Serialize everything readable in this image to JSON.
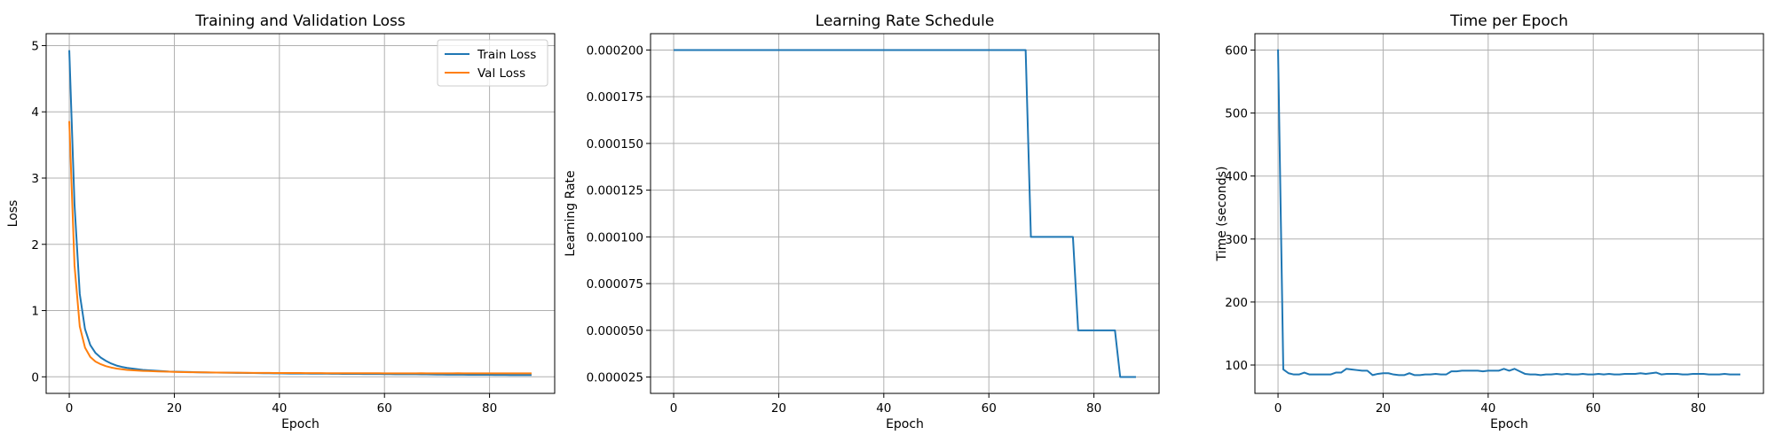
{
  "chart_data": [
    {
      "type": "line",
      "title": "Training and Validation Loss",
      "xlabel": "Epoch",
      "ylabel": "Loss",
      "xlim": [
        -4.4,
        92.4
      ],
      "ylim": [
        -0.25,
        5.18
      ],
      "xticks": [
        0,
        20,
        40,
        60,
        80
      ],
      "yticks": [
        0,
        1,
        2,
        3,
        4,
        5
      ],
      "tick_format": "int",
      "grid": true,
      "legend": "top-right",
      "series": [
        {
          "name": "Train Loss",
          "color": "#1f77b4",
          "x": [
            0,
            1,
            2,
            3,
            4,
            5,
            6,
            7,
            8,
            9,
            10,
            11,
            12,
            13,
            14,
            15,
            16,
            17,
            18,
            19,
            20,
            21,
            22,
            23,
            24,
            25,
            26,
            27,
            28,
            29,
            30,
            31,
            32,
            33,
            34,
            35,
            36,
            37,
            38,
            39,
            40,
            41,
            42,
            43,
            44,
            45,
            46,
            47,
            48,
            49,
            50,
            51,
            52,
            53,
            54,
            55,
            56,
            57,
            58,
            59,
            60,
            61,
            62,
            63,
            64,
            65,
            66,
            67,
            68,
            69,
            70,
            71,
            72,
            73,
            74,
            75,
            76,
            77,
            78,
            79,
            80,
            81,
            82,
            83,
            84,
            85,
            86,
            87,
            88
          ],
          "y": [
            4.93,
            2.6,
            1.25,
            0.72,
            0.48,
            0.36,
            0.29,
            0.24,
            0.2,
            0.17,
            0.15,
            0.135,
            0.125,
            0.115,
            0.105,
            0.1,
            0.095,
            0.09,
            0.085,
            0.08,
            0.078,
            0.076,
            0.074,
            0.072,
            0.07,
            0.068,
            0.066,
            0.065,
            0.064,
            0.063,
            0.062,
            0.061,
            0.06,
            0.059,
            0.058,
            0.057,
            0.056,
            0.055,
            0.054,
            0.053,
            0.052,
            0.051,
            0.05,
            0.05,
            0.049,
            0.049,
            0.048,
            0.048,
            0.047,
            0.047,
            0.046,
            0.046,
            0.045,
            0.045,
            0.044,
            0.044,
            0.043,
            0.043,
            0.042,
            0.042,
            0.041,
            0.041,
            0.04,
            0.04,
            0.04,
            0.039,
            0.039,
            0.038,
            0.037,
            0.036,
            0.035,
            0.034,
            0.033,
            0.033,
            0.032,
            0.032,
            0.031,
            0.031,
            0.03,
            0.03,
            0.03,
            0.029,
            0.029,
            0.029,
            0.028,
            0.028,
            0.028,
            0.027,
            0.027
          ]
        },
        {
          "name": "Val Loss",
          "color": "#ff7f0e",
          "x": [
            0,
            1,
            2,
            3,
            4,
            5,
            6,
            7,
            8,
            9,
            10,
            11,
            12,
            13,
            14,
            15,
            16,
            17,
            18,
            19,
            20,
            21,
            22,
            23,
            24,
            25,
            26,
            27,
            28,
            29,
            30,
            31,
            32,
            33,
            34,
            35,
            36,
            37,
            38,
            39,
            40,
            41,
            42,
            43,
            44,
            45,
            46,
            47,
            48,
            49,
            50,
            51,
            52,
            53,
            54,
            55,
            56,
            57,
            58,
            59,
            60,
            61,
            62,
            63,
            64,
            65,
            66,
            67,
            68,
            69,
            70,
            71,
            72,
            73,
            74,
            75,
            76,
            77,
            78,
            79,
            80,
            81,
            82,
            83,
            84,
            85,
            86,
            87,
            88
          ],
          "y": [
            3.86,
            1.68,
            0.76,
            0.44,
            0.3,
            0.23,
            0.19,
            0.16,
            0.14,
            0.125,
            0.115,
            0.105,
            0.1,
            0.095,
            0.09,
            0.087,
            0.084,
            0.081,
            0.079,
            0.077,
            0.075,
            0.073,
            0.071,
            0.07,
            0.069,
            0.068,
            0.067,
            0.066,
            0.065,
            0.064,
            0.063,
            0.062,
            0.062,
            0.061,
            0.061,
            0.06,
            0.06,
            0.059,
            0.059,
            0.058,
            0.058,
            0.058,
            0.057,
            0.057,
            0.057,
            0.056,
            0.056,
            0.056,
            0.056,
            0.055,
            0.055,
            0.055,
            0.055,
            0.055,
            0.054,
            0.054,
            0.054,
            0.054,
            0.054,
            0.054,
            0.053,
            0.053,
            0.053,
            0.053,
            0.053,
            0.053,
            0.053,
            0.055,
            0.052,
            0.052,
            0.052,
            0.052,
            0.053,
            0.052,
            0.054,
            0.053,
            0.052,
            0.052,
            0.052,
            0.052,
            0.053,
            0.052,
            0.052,
            0.052,
            0.052,
            0.053,
            0.052,
            0.052,
            0.052
          ]
        }
      ]
    },
    {
      "type": "line",
      "title": "Learning Rate Schedule",
      "xlabel": "Epoch",
      "ylabel": "Learning Rate",
      "xlim": [
        -4.4,
        92.4
      ],
      "ylim": [
        1.625e-05,
        0.00020875
      ],
      "xticks": [
        0,
        20,
        40,
        60,
        80
      ],
      "yticks": [
        2.5e-05,
        5e-05,
        7.5e-05,
        0.0001,
        0.000125,
        0.00015,
        0.000175,
        0.0002
      ],
      "tick_format": "fixed6",
      "grid": true,
      "series": [
        {
          "color": "#1f77b4",
          "x": [
            0,
            67,
            68,
            76,
            77,
            84,
            85,
            88
          ],
          "y": [
            0.0002,
            0.0002,
            0.0001,
            0.0001,
            5e-05,
            5e-05,
            2.5e-05,
            2.5e-05
          ]
        }
      ]
    },
    {
      "type": "line",
      "title": "Time per Epoch",
      "xlabel": "Epoch",
      "ylabel": "Time (seconds)",
      "xlim": [
        -4.4,
        92.4
      ],
      "ylim": [
        55,
        626
      ],
      "xticks": [
        0,
        20,
        40,
        60,
        80
      ],
      "yticks": [
        100,
        200,
        300,
        400,
        500,
        600
      ],
      "tick_format": "int",
      "grid": true,
      "series": [
        {
          "color": "#1f77b4",
          "x": [
            0,
            1,
            2,
            3,
            4,
            5,
            6,
            7,
            8,
            9,
            10,
            11,
            12,
            13,
            14,
            15,
            16,
            17,
            18,
            19,
            20,
            21,
            22,
            23,
            24,
            25,
            26,
            27,
            28,
            29,
            30,
            31,
            32,
            33,
            34,
            35,
            36,
            37,
            38,
            39,
            40,
            41,
            42,
            43,
            44,
            45,
            46,
            47,
            48,
            49,
            50,
            51,
            52,
            53,
            54,
            55,
            56,
            57,
            58,
            59,
            60,
            61,
            62,
            63,
            64,
            65,
            66,
            67,
            68,
            69,
            70,
            71,
            72,
            73,
            74,
            75,
            76,
            77,
            78,
            79,
            80,
            81,
            82,
            83,
            84,
            85,
            86,
            87,
            88
          ],
          "y": [
            601,
            93,
            87,
            85,
            85,
            88,
            85,
            85,
            85,
            85,
            85,
            88,
            88,
            94,
            93,
            92,
            91,
            91,
            84,
            86,
            87,
            87,
            85,
            84,
            84,
            87,
            84,
            84,
            85,
            85,
            86,
            85,
            85,
            90,
            90,
            91,
            91,
            91,
            91,
            90,
            91,
            91,
            91,
            94,
            91,
            94,
            90,
            86,
            85,
            85,
            84,
            85,
            85,
            86,
            85,
            86,
            85,
            85,
            86,
            85,
            85,
            86,
            85,
            86,
            85,
            85,
            86,
            86,
            86,
            87,
            86,
            87,
            88,
            85,
            86,
            86,
            86,
            85,
            85,
            86,
            86,
            86,
            85,
            85,
            85,
            86,
            85,
            85,
            85
          ]
        }
      ]
    }
  ]
}
